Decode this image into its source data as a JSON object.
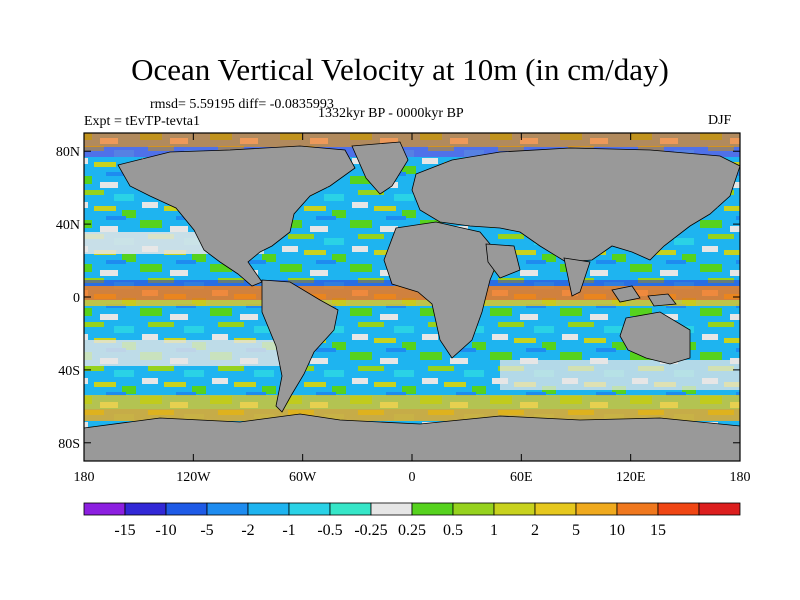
{
  "title": "Ocean Vertical Velocity at 10m (in cm/day)",
  "stats": "rmsd= 5.59195 diff= -0.0835993",
  "period": "1332kyr BP - 0000kyr BP",
  "experiment": "Expt = tEvTP-tevta1",
  "season": "DJF",
  "map": {
    "lat_labels": [
      {
        "lat": 80,
        "label": "80N"
      },
      {
        "lat": 40,
        "label": "40N"
      },
      {
        "lat": 0,
        "label": "0"
      },
      {
        "lat": -40,
        "label": "40S"
      },
      {
        "lat": -80,
        "label": "80S"
      }
    ],
    "lon_labels": [
      {
        "lon": -180,
        "label": "180"
      },
      {
        "lon": -120,
        "label": "120W"
      },
      {
        "lon": -60,
        "label": "60W"
      },
      {
        "lon": 0,
        "label": "0"
      },
      {
        "lon": 60,
        "label": "60E"
      },
      {
        "lon": 120,
        "label": "120E"
      },
      {
        "lon": 180,
        "label": "180"
      }
    ],
    "land_color": "#999999",
    "lat_range": [
      -90,
      90
    ],
    "lon_range": [
      -180,
      180
    ]
  },
  "colorbar": {
    "colors": [
      "#8c1fe0",
      "#3228d6",
      "#1e5ae6",
      "#1e8cf0",
      "#1eb4f0",
      "#2ad2e6",
      "#36e6c8",
      "#e6e6e6",
      "#56d21e",
      "#96d21e",
      "#c8d21e",
      "#e6c81e",
      "#f0aa1e",
      "#f0781e",
      "#f04614",
      "#dc1e1e"
    ],
    "labels": [
      "-15",
      "-10",
      "-5",
      "-2",
      "-1",
      "-0.5",
      "-0.25",
      "0.25",
      "0.5",
      "1",
      "2",
      "5",
      "10",
      "15"
    ]
  }
}
